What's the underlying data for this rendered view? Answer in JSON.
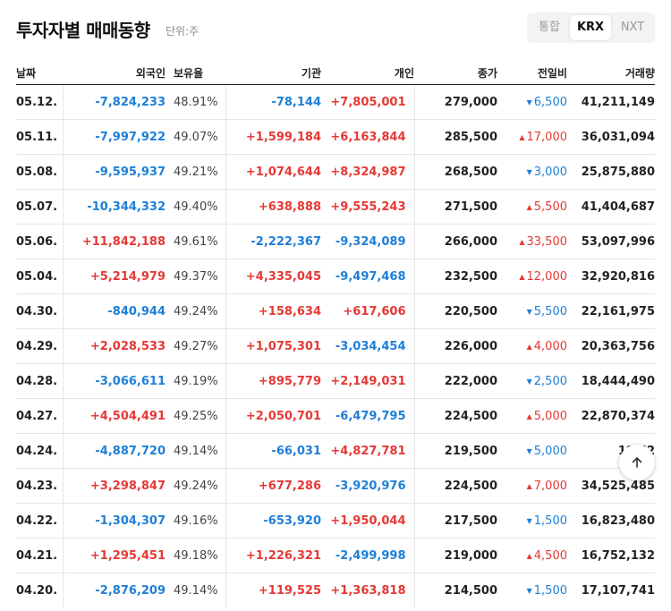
{
  "header": {
    "title": "투자자별 매매동향",
    "unit": "단위:주",
    "tabs": [
      "통합",
      "KRX",
      "NXT"
    ]
  },
  "columns": [
    "날짜",
    "외국인",
    "보유율",
    "기관",
    "개인",
    "종가",
    "전일비",
    "거래량"
  ],
  "rows": [
    {
      "date": "05.12.",
      "foreign": "-7,824,233",
      "ratio": "48.91%",
      "inst": "-78,144",
      "indiv": "+7,805,001",
      "close": "279,000",
      "change": "6,500",
      "dir": "down",
      "volume": "41,211,149"
    },
    {
      "date": "05.11.",
      "foreign": "-7,997,922",
      "ratio": "49.07%",
      "inst": "+1,599,184",
      "indiv": "+6,163,844",
      "close": "285,500",
      "change": "17,000",
      "dir": "up",
      "volume": "36,031,094"
    },
    {
      "date": "05.08.",
      "foreign": "-9,595,937",
      "ratio": "49.21%",
      "inst": "+1,074,644",
      "indiv": "+8,324,987",
      "close": "268,500",
      "change": "3,000",
      "dir": "down",
      "volume": "25,875,880"
    },
    {
      "date": "05.07.",
      "foreign": "-10,344,332",
      "ratio": "49.40%",
      "inst": "+638,888",
      "indiv": "+9,555,243",
      "close": "271,500",
      "change": "5,500",
      "dir": "up",
      "volume": "41,404,687"
    },
    {
      "date": "05.06.",
      "foreign": "+11,842,188",
      "ratio": "49.61%",
      "inst": "-2,222,367",
      "indiv": "-9,324,089",
      "close": "266,000",
      "change": "33,500",
      "dir": "up",
      "volume": "53,097,996"
    },
    {
      "date": "05.04.",
      "foreign": "+5,214,979",
      "ratio": "49.37%",
      "inst": "+4,335,045",
      "indiv": "-9,497,468",
      "close": "232,500",
      "change": "12,000",
      "dir": "up",
      "volume": "32,920,816"
    },
    {
      "date": "04.30.",
      "foreign": "-840,944",
      "ratio": "49.24%",
      "inst": "+158,634",
      "indiv": "+617,606",
      "close": "220,500",
      "change": "5,500",
      "dir": "down",
      "volume": "22,161,975"
    },
    {
      "date": "04.29.",
      "foreign": "+2,028,533",
      "ratio": "49.27%",
      "inst": "+1,075,301",
      "indiv": "-3,034,454",
      "close": "226,000",
      "change": "4,000",
      "dir": "up",
      "volume": "20,363,756"
    },
    {
      "date": "04.28.",
      "foreign": "-3,066,611",
      "ratio": "49.19%",
      "inst": "+895,779",
      "indiv": "+2,149,031",
      "close": "222,000",
      "change": "2,500",
      "dir": "down",
      "volume": "18,444,490"
    },
    {
      "date": "04.27.",
      "foreign": "+4,504,491",
      "ratio": "49.25%",
      "inst": "+2,050,701",
      "indiv": "-6,479,795",
      "close": "224,500",
      "change": "5,000",
      "dir": "up",
      "volume": "22,870,374"
    },
    {
      "date": "04.24.",
      "foreign": "-4,887,720",
      "ratio": "49.14%",
      "inst": "-66,031",
      "indiv": "+4,827,781",
      "close": "219,500",
      "change": "5,000",
      "dir": "down",
      "volume": "19,62"
    },
    {
      "date": "04.23.",
      "foreign": "+3,298,847",
      "ratio": "49.24%",
      "inst": "+677,286",
      "indiv": "-3,920,976",
      "close": "224,500",
      "change": "7,000",
      "dir": "up",
      "volume": "34,525,485"
    },
    {
      "date": "04.22.",
      "foreign": "-1,304,307",
      "ratio": "49.16%",
      "inst": "-653,920",
      "indiv": "+1,950,044",
      "close": "217,500",
      "change": "1,500",
      "dir": "down",
      "volume": "16,823,480"
    },
    {
      "date": "04.21.",
      "foreign": "+1,295,451",
      "ratio": "49.18%",
      "inst": "+1,226,321",
      "indiv": "-2,499,998",
      "close": "219,000",
      "change": "4,500",
      "dir": "up",
      "volume": "16,752,132"
    },
    {
      "date": "04.20.",
      "foreign": "-2,876,209",
      "ratio": "49.14%",
      "inst": "+119,525",
      "indiv": "+1,363,818",
      "close": "214,500",
      "change": "1,500",
      "dir": "down",
      "volume": "17,107,741"
    }
  ],
  "icons": {
    "scroll_top": "arrow-up-icon",
    "up": "triangle-up-icon",
    "down": "triangle-down-icon"
  },
  "colors": {
    "up": "#e53935",
    "down": "#1e7fd8"
  }
}
